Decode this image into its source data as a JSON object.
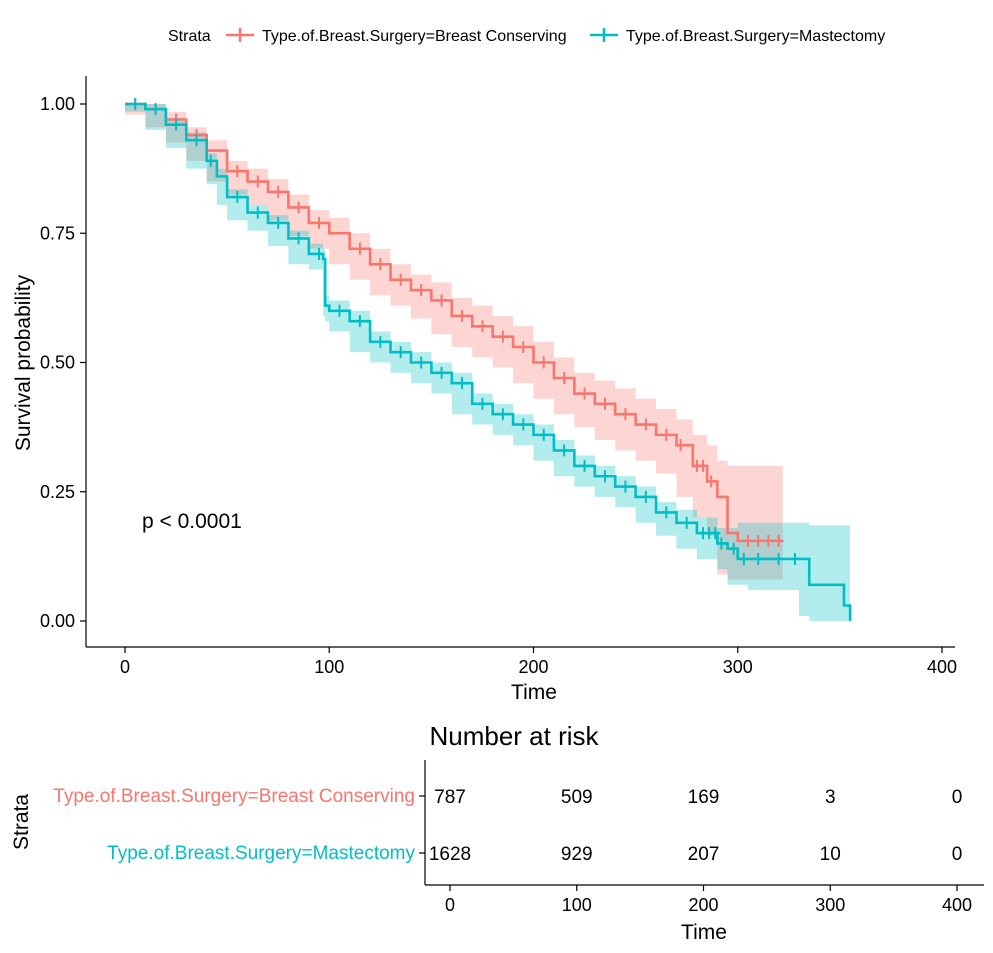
{
  "legend": {
    "title": "Strata",
    "items": [
      {
        "label": "Type.of.Breast.Surgery=Breast Conserving",
        "color": "#F8766D"
      },
      {
        "label": "Type.of.Breast.Surgery=Mastectomy",
        "color": "#00BFC4"
      }
    ]
  },
  "annotation": {
    "pvalue": "p < 0.0001"
  },
  "chart_data": {
    "type": "line",
    "subtype": "kaplan-meier step curve with confidence bands",
    "xlabel": "Time",
    "ylabel": "Survival probability",
    "xlim": [
      -8,
      405
    ],
    "ylim": [
      -0.05,
      1.05
    ],
    "xticks": [
      0,
      100,
      200,
      300,
      400
    ],
    "yticks": [
      0.0,
      0.25,
      0.5,
      0.75,
      1.0
    ],
    "ytick_labels": [
      "0.00",
      "0.25",
      "0.50",
      "0.75",
      "1.00"
    ],
    "grid": false,
    "legend_position": "top",
    "series": [
      {
        "name": "Type.of.Breast.Surgery=Breast Conserving",
        "color": "#F8766D",
        "x": [
          0,
          10,
          20,
          30,
          40,
          50,
          60,
          70,
          80,
          90,
          100,
          110,
          120,
          130,
          140,
          150,
          160,
          170,
          180,
          190,
          200,
          210,
          220,
          230,
          240,
          250,
          260,
          270,
          278,
          285,
          290,
          295,
          300,
          322
        ],
        "y": [
          1.0,
          0.99,
          0.97,
          0.94,
          0.91,
          0.87,
          0.85,
          0.83,
          0.8,
          0.77,
          0.75,
          0.72,
          0.69,
          0.66,
          0.64,
          0.62,
          0.59,
          0.57,
          0.55,
          0.53,
          0.5,
          0.47,
          0.44,
          0.42,
          0.4,
          0.38,
          0.36,
          0.34,
          0.3,
          0.27,
          0.24,
          0.17,
          0.155,
          0.155
        ],
        "ci_lower": [
          1.0,
          0.98,
          0.955,
          0.925,
          0.89,
          0.85,
          0.825,
          0.805,
          0.775,
          0.745,
          0.72,
          0.69,
          0.66,
          0.63,
          0.61,
          0.585,
          0.555,
          0.53,
          0.51,
          0.49,
          0.46,
          0.43,
          0.4,
          0.375,
          0.35,
          0.33,
          0.31,
          0.285,
          0.24,
          0.2,
          0.165,
          0.09,
          0.08,
          0.08
        ],
        "ci_upper": [
          1.0,
          1.0,
          0.985,
          0.955,
          0.93,
          0.89,
          0.875,
          0.855,
          0.825,
          0.795,
          0.78,
          0.75,
          0.72,
          0.69,
          0.67,
          0.655,
          0.625,
          0.61,
          0.59,
          0.57,
          0.54,
          0.51,
          0.48,
          0.465,
          0.45,
          0.43,
          0.41,
          0.39,
          0.36,
          0.34,
          0.31,
          0.3,
          0.3,
          0.3
        ],
        "censored_x": [
          5,
          15,
          25,
          35,
          55,
          65,
          75,
          85,
          95,
          115,
          125,
          135,
          145,
          155,
          165,
          175,
          185,
          195,
          205,
          215,
          225,
          235,
          245,
          255,
          265,
          272,
          280,
          283,
          287,
          305,
          310,
          315,
          320
        ]
      },
      {
        "name": "Type.of.Breast.Surgery=Mastectomy",
        "color": "#00BFC4",
        "x": [
          0,
          10,
          20,
          30,
          40,
          45,
          50,
          60,
          70,
          80,
          90,
          97,
          98,
          100,
          110,
          120,
          130,
          140,
          150,
          160,
          170,
          180,
          190,
          200,
          210,
          220,
          230,
          240,
          250,
          260,
          270,
          280,
          290,
          295,
          300,
          305,
          330,
          335,
          350,
          352,
          355
        ],
        "y": [
          1.0,
          0.99,
          0.96,
          0.93,
          0.89,
          0.86,
          0.82,
          0.79,
          0.77,
          0.74,
          0.71,
          0.7,
          0.61,
          0.6,
          0.58,
          0.54,
          0.52,
          0.5,
          0.48,
          0.46,
          0.42,
          0.4,
          0.38,
          0.36,
          0.33,
          0.3,
          0.28,
          0.26,
          0.24,
          0.21,
          0.19,
          0.17,
          0.15,
          0.14,
          0.12,
          0.12,
          0.12,
          0.07,
          0.07,
          0.03,
          0.0
        ],
        "ci_lower": [
          1.0,
          0.985,
          0.95,
          0.915,
          0.875,
          0.845,
          0.805,
          0.775,
          0.755,
          0.725,
          0.69,
          0.68,
          0.59,
          0.58,
          0.56,
          0.52,
          0.5,
          0.48,
          0.46,
          0.44,
          0.4,
          0.38,
          0.36,
          0.34,
          0.31,
          0.28,
          0.26,
          0.24,
          0.22,
          0.19,
          0.165,
          0.14,
          0.12,
          0.1,
          0.07,
          0.07,
          0.06,
          0.01,
          0.0,
          0.0,
          0.0
        ],
        "ci_upper": [
          1.0,
          1.0,
          0.97,
          0.945,
          0.905,
          0.875,
          0.835,
          0.805,
          0.785,
          0.755,
          0.73,
          0.72,
          0.63,
          0.62,
          0.6,
          0.56,
          0.54,
          0.52,
          0.5,
          0.48,
          0.44,
          0.42,
          0.4,
          0.38,
          0.35,
          0.32,
          0.3,
          0.28,
          0.26,
          0.23,
          0.215,
          0.2,
          0.18,
          0.18,
          0.19,
          0.19,
          0.19,
          0.185,
          0.185,
          0.185,
          0.185
        ],
        "censored_x": [
          5,
          15,
          25,
          35,
          42,
          55,
          65,
          75,
          85,
          95,
          105,
          115,
          125,
          135,
          145,
          155,
          165,
          175,
          185,
          195,
          205,
          215,
          225,
          235,
          245,
          255,
          265,
          275,
          283,
          286,
          289,
          292,
          298,
          303,
          310,
          320,
          328
        ]
      }
    ]
  },
  "risk_table": {
    "title": "Number at risk",
    "ylabel": "Strata",
    "xlabel": "Time",
    "xticks": [
      0,
      100,
      200,
      300,
      400
    ],
    "rows": [
      {
        "label": "Type.of.Breast.Surgery=Breast Conserving",
        "color": "#F8766D",
        "values": [
          "787",
          "509",
          "169",
          "3",
          "0"
        ]
      },
      {
        "label": "Type.of.Breast.Surgery=Mastectomy",
        "color": "#00BFC4",
        "values": [
          "1628",
          "929",
          "207",
          "10",
          "0"
        ]
      }
    ]
  }
}
